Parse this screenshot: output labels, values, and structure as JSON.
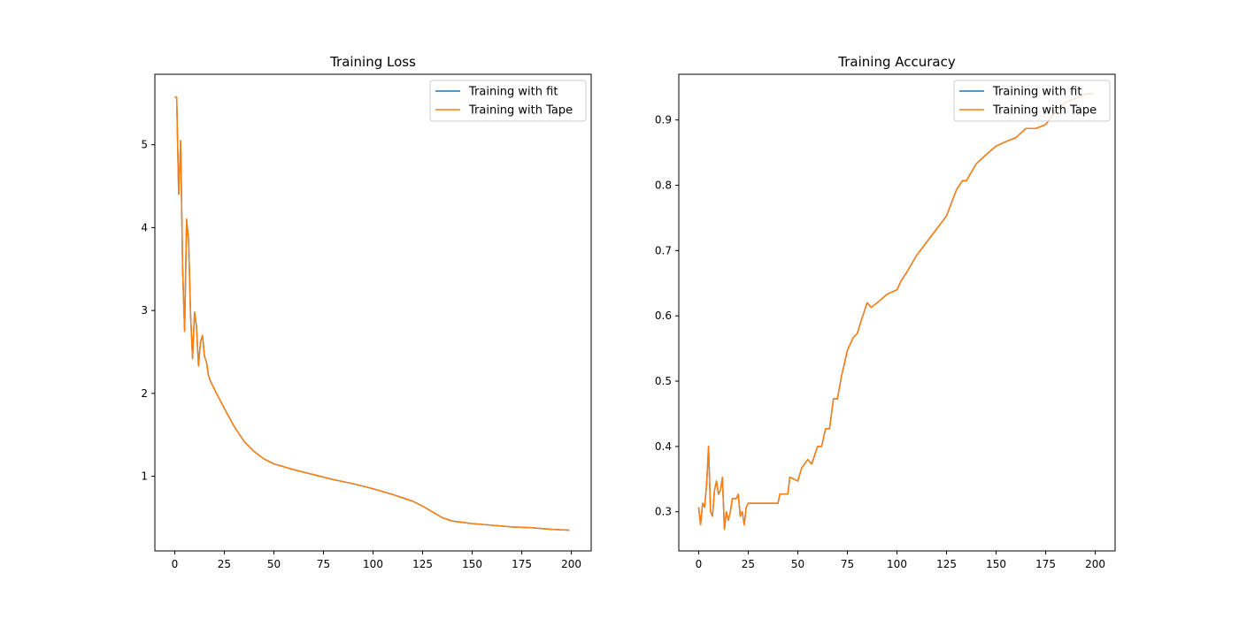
{
  "chart_data": [
    {
      "type": "line",
      "title": "Training Loss",
      "xlabel": "",
      "ylabel": "",
      "xlim": [
        -10,
        210
      ],
      "ylim": [
        0.1,
        5.85
      ],
      "xticks": [
        0,
        25,
        50,
        75,
        100,
        125,
        150,
        175,
        200
      ],
      "yticks": [
        1,
        2,
        3,
        4,
        5
      ],
      "legend": "top-right",
      "grid": false,
      "series": [
        {
          "name": "Training with fit",
          "color": "#1f77b4",
          "points": [
            [
              0,
              5.58
            ],
            [
              1,
              5.57
            ],
            [
              2,
              4.4
            ],
            [
              3,
              5.05
            ],
            [
              4,
              3.5
            ],
            [
              5,
              2.75
            ],
            [
              6,
              4.1
            ],
            [
              7,
              3.85
            ],
            [
              8,
              2.95
            ],
            [
              9,
              2.42
            ],
            [
              10,
              2.98
            ],
            [
              11,
              2.8
            ],
            [
              12,
              2.33
            ],
            [
              13,
              2.62
            ],
            [
              14,
              2.7
            ],
            [
              15,
              2.45
            ],
            [
              16,
              2.38
            ],
            [
              17,
              2.22
            ],
            [
              18,
              2.15
            ],
            [
              19,
              2.1
            ],
            [
              20,
              2.05
            ],
            [
              25,
              1.82
            ],
            [
              30,
              1.6
            ],
            [
              35,
              1.42
            ],
            [
              40,
              1.3
            ],
            [
              45,
              1.21
            ],
            [
              50,
              1.15
            ],
            [
              60,
              1.08
            ],
            [
              70,
              1.02
            ],
            [
              80,
              0.96
            ],
            [
              90,
              0.91
            ],
            [
              100,
              0.85
            ],
            [
              110,
              0.78
            ],
            [
              120,
              0.7
            ],
            [
              125,
              0.64
            ],
            [
              130,
              0.57
            ],
            [
              135,
              0.5
            ],
            [
              140,
              0.46
            ],
            [
              150,
              0.43
            ],
            [
              160,
              0.41
            ],
            [
              170,
              0.39
            ],
            [
              180,
              0.38
            ],
            [
              190,
              0.36
            ],
            [
              199,
              0.35
            ]
          ]
        },
        {
          "name": "Training with Tape",
          "color": "#ff7f0e",
          "points": [
            [
              0,
              5.58
            ],
            [
              1,
              5.57
            ],
            [
              2,
              4.4
            ],
            [
              3,
              5.05
            ],
            [
              4,
              3.5
            ],
            [
              5,
              2.75
            ],
            [
              6,
              4.1
            ],
            [
              7,
              3.85
            ],
            [
              8,
              2.95
            ],
            [
              9,
              2.42
            ],
            [
              10,
              2.98
            ],
            [
              11,
              2.8
            ],
            [
              12,
              2.33
            ],
            [
              13,
              2.62
            ],
            [
              14,
              2.7
            ],
            [
              15,
              2.45
            ],
            [
              16,
              2.38
            ],
            [
              17,
              2.22
            ],
            [
              18,
              2.15
            ],
            [
              19,
              2.1
            ],
            [
              20,
              2.05
            ],
            [
              25,
              1.82
            ],
            [
              30,
              1.6
            ],
            [
              35,
              1.42
            ],
            [
              40,
              1.3
            ],
            [
              45,
              1.21
            ],
            [
              50,
              1.15
            ],
            [
              60,
              1.08
            ],
            [
              70,
              1.02
            ],
            [
              80,
              0.96
            ],
            [
              90,
              0.91
            ],
            [
              100,
              0.85
            ],
            [
              110,
              0.78
            ],
            [
              120,
              0.7
            ],
            [
              125,
              0.64
            ],
            [
              130,
              0.57
            ],
            [
              135,
              0.5
            ],
            [
              140,
              0.46
            ],
            [
              150,
              0.43
            ],
            [
              160,
              0.41
            ],
            [
              170,
              0.39
            ],
            [
              180,
              0.38
            ],
            [
              190,
              0.36
            ],
            [
              199,
              0.35
            ]
          ]
        }
      ]
    },
    {
      "type": "line",
      "title": "Training Accuracy",
      "xlabel": "",
      "ylabel": "",
      "xlim": [
        -10,
        210
      ],
      "ylim": [
        0.24,
        0.97
      ],
      "xticks": [
        0,
        25,
        50,
        75,
        100,
        125,
        150,
        175,
        200
      ],
      "yticks": [
        0.3,
        0.4,
        0.5,
        0.6,
        0.7,
        0.8,
        0.9
      ],
      "legend": "top-right",
      "grid": false,
      "series": [
        {
          "name": "Training with fit",
          "color": "#1f77b4",
          "points": [
            [
              0,
              0.307
            ],
            [
              1,
              0.28
            ],
            [
              2,
              0.313
            ],
            [
              3,
              0.307
            ],
            [
              4,
              0.34
            ],
            [
              5,
              0.4
            ],
            [
              6,
              0.3
            ],
            [
              7,
              0.293
            ],
            [
              8,
              0.333
            ],
            [
              9,
              0.347
            ],
            [
              10,
              0.327
            ],
            [
              11,
              0.333
            ],
            [
              12,
              0.353
            ],
            [
              13,
              0.273
            ],
            [
              14,
              0.3
            ],
            [
              15,
              0.287
            ],
            [
              16,
              0.3
            ],
            [
              17,
              0.32
            ],
            [
              18,
              0.32
            ],
            [
              19,
              0.32
            ],
            [
              20,
              0.327
            ],
            [
              21,
              0.293
            ],
            [
              22,
              0.3
            ],
            [
              23,
              0.28
            ],
            [
              24,
              0.307
            ],
            [
              25,
              0.313
            ],
            [
              30,
              0.313
            ],
            [
              35,
              0.313
            ],
            [
              40,
              0.313
            ],
            [
              41,
              0.327
            ],
            [
              45,
              0.327
            ],
            [
              46,
              0.353
            ],
            [
              50,
              0.347
            ],
            [
              52,
              0.367
            ],
            [
              55,
              0.38
            ],
            [
              57,
              0.373
            ],
            [
              60,
              0.4
            ],
            [
              62,
              0.4
            ],
            [
              64,
              0.427
            ],
            [
              66,
              0.427
            ],
            [
              68,
              0.473
            ],
            [
              70,
              0.473
            ],
            [
              72,
              0.507
            ],
            [
              75,
              0.547
            ],
            [
              78,
              0.567
            ],
            [
              80,
              0.573
            ],
            [
              82,
              0.593
            ],
            [
              85,
              0.62
            ],
            [
              87,
              0.613
            ],
            [
              90,
              0.62
            ],
            [
              95,
              0.633
            ],
            [
              100,
              0.64
            ],
            [
              102,
              0.653
            ],
            [
              105,
              0.667
            ],
            [
              110,
              0.693
            ],
            [
              115,
              0.713
            ],
            [
              120,
              0.733
            ],
            [
              125,
              0.753
            ],
            [
              130,
              0.793
            ],
            [
              133,
              0.807
            ],
            [
              135,
              0.807
            ],
            [
              140,
              0.833
            ],
            [
              145,
              0.847
            ],
            [
              150,
              0.86
            ],
            [
              155,
              0.867
            ],
            [
              160,
              0.873
            ],
            [
              165,
              0.887
            ],
            [
              170,
              0.887
            ],
            [
              175,
              0.893
            ],
            [
              180,
              0.913
            ],
            [
              185,
              0.927
            ],
            [
              190,
              0.933
            ],
            [
              195,
              0.94
            ],
            [
              199,
              0.94
            ]
          ]
        },
        {
          "name": "Training with Tape",
          "color": "#ff7f0e",
          "points": [
            [
              0,
              0.307
            ],
            [
              1,
              0.28
            ],
            [
              2,
              0.313
            ],
            [
              3,
              0.307
            ],
            [
              4,
              0.34
            ],
            [
              5,
              0.4
            ],
            [
              6,
              0.3
            ],
            [
              7,
              0.293
            ],
            [
              8,
              0.333
            ],
            [
              9,
              0.347
            ],
            [
              10,
              0.327
            ],
            [
              11,
              0.333
            ],
            [
              12,
              0.353
            ],
            [
              13,
              0.273
            ],
            [
              14,
              0.3
            ],
            [
              15,
              0.287
            ],
            [
              16,
              0.3
            ],
            [
              17,
              0.32
            ],
            [
              18,
              0.32
            ],
            [
              19,
              0.32
            ],
            [
              20,
              0.327
            ],
            [
              21,
              0.293
            ],
            [
              22,
              0.3
            ],
            [
              23,
              0.28
            ],
            [
              24,
              0.307
            ],
            [
              25,
              0.313
            ],
            [
              30,
              0.313
            ],
            [
              35,
              0.313
            ],
            [
              40,
              0.313
            ],
            [
              41,
              0.327
            ],
            [
              45,
              0.327
            ],
            [
              46,
              0.353
            ],
            [
              50,
              0.347
            ],
            [
              52,
              0.367
            ],
            [
              55,
              0.38
            ],
            [
              57,
              0.373
            ],
            [
              60,
              0.4
            ],
            [
              62,
              0.4
            ],
            [
              64,
              0.427
            ],
            [
              66,
              0.427
            ],
            [
              68,
              0.473
            ],
            [
              70,
              0.473
            ],
            [
              72,
              0.507
            ],
            [
              75,
              0.547
            ],
            [
              78,
              0.567
            ],
            [
              80,
              0.573
            ],
            [
              82,
              0.593
            ],
            [
              85,
              0.62
            ],
            [
              87,
              0.613
            ],
            [
              90,
              0.62
            ],
            [
              95,
              0.633
            ],
            [
              100,
              0.64
            ],
            [
              102,
              0.653
            ],
            [
              105,
              0.667
            ],
            [
              110,
              0.693
            ],
            [
              115,
              0.713
            ],
            [
              120,
              0.733
            ],
            [
              125,
              0.753
            ],
            [
              130,
              0.793
            ],
            [
              133,
              0.807
            ],
            [
              135,
              0.807
            ],
            [
              140,
              0.833
            ],
            [
              145,
              0.847
            ],
            [
              150,
              0.86
            ],
            [
              155,
              0.867
            ],
            [
              160,
              0.873
            ],
            [
              165,
              0.887
            ],
            [
              170,
              0.887
            ],
            [
              175,
              0.893
            ],
            [
              180,
              0.913
            ],
            [
              185,
              0.927
            ],
            [
              190,
              0.933
            ],
            [
              195,
              0.94
            ],
            [
              199,
              0.94
            ]
          ]
        }
      ]
    }
  ]
}
